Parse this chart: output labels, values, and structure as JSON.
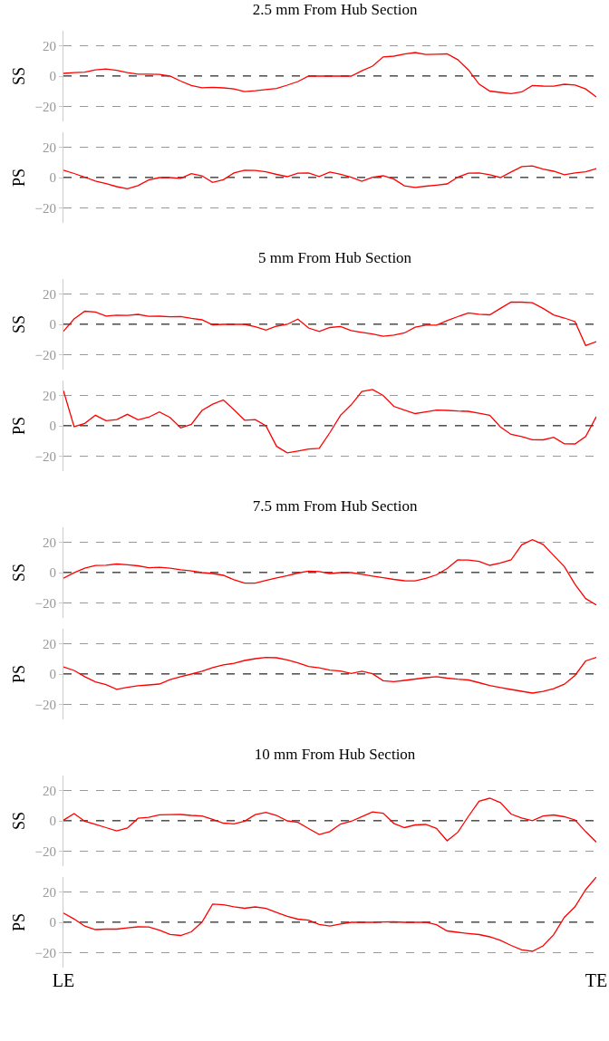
{
  "chart_data": [
    {
      "type": "line",
      "title": "2.5 mm From Hub Section",
      "ylabel": "SS",
      "categories": [
        null,
        null,
        null,
        null,
        null,
        null,
        null,
        null,
        null,
        null,
        null,
        null,
        null,
        null,
        null,
        null,
        null,
        null,
        null,
        null,
        null,
        null,
        null,
        null,
        null,
        null,
        null,
        null,
        null,
        null,
        null,
        null,
        null,
        null,
        null,
        null,
        null,
        null,
        null,
        null,
        null,
        null,
        null,
        null,
        null,
        null,
        null,
        null,
        null,
        null,
        null
      ],
      "ylim": [
        -30,
        30
      ],
      "yticks": [
        -20,
        0,
        20
      ],
      "grid": "y",
      "tick_labels": "y",
      "marker": "none",
      "line_style": "solid",
      "ref_lines": [
        {
          "axis": "y",
          "value": 0,
          "color": "#0000ff",
          "line_style": "dashed"
        }
      ],
      "series": [
        {
          "color": "#ff0000",
          "values": [
            1.8,
            2.3,
            2.6,
            4.1,
            4.7,
            3.8,
            2.3,
            1.3,
            1.3,
            1.1,
            0,
            -3.3,
            -6.2,
            -7.7,
            -7.4,
            -7.8,
            -8.5,
            -10.3,
            -9.7,
            -8.9,
            -8.2,
            -6,
            -3.6,
            0,
            0,
            0,
            0,
            0,
            3.5,
            6.6,
            12.7,
            13.2,
            14.6,
            15.6,
            14.3,
            14.5,
            14.7,
            10.9,
            4.1,
            -5.3,
            -9.9,
            -10.8,
            -11.6,
            -10.5,
            -6.2,
            -6.6,
            -6.7,
            -5.4,
            -5.9,
            -8.5,
            -13.8
          ]
        }
      ]
    },
    {
      "type": "line",
      "ylabel": "PS",
      "categories": [
        null,
        null,
        null,
        null,
        null,
        null,
        null,
        null,
        null,
        null,
        null,
        null,
        null,
        null,
        null,
        null,
        null,
        null,
        null,
        null,
        null,
        null,
        null,
        null,
        null,
        null,
        null,
        null,
        null,
        null,
        null,
        null,
        null,
        null,
        null,
        null,
        null,
        null,
        null,
        null,
        null,
        null,
        null,
        null,
        null,
        null,
        null,
        null,
        null,
        null,
        null
      ],
      "ylim": [
        -30,
        30
      ],
      "yticks": [
        -20,
        0,
        20
      ],
      "grid": "y",
      "tick_labels": "y",
      "marker": "none",
      "line_style": "solid",
      "ref_lines": [
        {
          "axis": "y",
          "value": 0,
          "color": "#0000ff",
          "line_style": "dashed"
        }
      ],
      "series": [
        {
          "color": "#ff0000",
          "values": [
            4.9,
            2.7,
            0.3,
            -2.3,
            -4,
            -6,
            -7.4,
            -5.3,
            -1.6,
            0,
            0,
            -0.5,
            2.6,
            1.2,
            -3.2,
            -1.4,
            3.1,
            4.9,
            4.7,
            3.8,
            2.1,
            0.6,
            2.9,
            3,
            0.7,
            3.7,
            2.2,
            0.2,
            -2.4,
            0.2,
            1.2,
            -1,
            -5.5,
            -6.5,
            -5.7,
            -5,
            -4.2,
            0.3,
            2.9,
            3.1,
            1.9,
            0,
            3.7,
            7.3,
            7.7,
            5.6,
            4.2,
            1.9,
            3.1,
            3.8,
            6
          ]
        }
      ]
    },
    {
      "type": "line",
      "title": "5 mm From Hub Section",
      "ylabel": "SS",
      "categories": [
        null,
        null,
        null,
        null,
        null,
        null,
        null,
        null,
        null,
        null,
        null,
        null,
        null,
        null,
        null,
        null,
        null,
        null,
        null,
        null,
        null,
        null,
        null,
        null,
        null,
        null,
        null,
        null,
        null,
        null,
        null,
        null,
        null,
        null,
        null,
        null,
        null,
        null,
        null,
        null,
        null,
        null,
        null,
        null,
        null,
        null,
        null,
        null,
        null,
        null,
        null
      ],
      "ylim": [
        -30,
        30
      ],
      "yticks": [
        -20,
        0,
        20
      ],
      "grid": "y",
      "tick_labels": "y",
      "marker": "none",
      "line_style": "solid",
      "ref_lines": [
        {
          "axis": "y",
          "value": 0,
          "color": "#0000ff",
          "line_style": "dashed"
        }
      ],
      "series": [
        {
          "color": "#ff0000",
          "values": [
            -4.6,
            3.6,
            8.7,
            8.2,
            5.5,
            6.1,
            5.9,
            6.6,
            5.3,
            5.4,
            5,
            5.2,
            4,
            3,
            -0.3,
            0,
            0,
            0,
            -1.6,
            -3.8,
            -1.2,
            0,
            3.5,
            -2.4,
            -4.7,
            -2.1,
            -1.4,
            -4.1,
            -5.3,
            -6.4,
            -7.9,
            -7.1,
            -5.7,
            -1.9,
            -0.5,
            -0.5,
            2.5,
            5.1,
            7.6,
            6.7,
            6.3,
            10.6,
            14.7,
            14.7,
            14.3,
            10.6,
            6.2,
            4.2,
            1.8,
            -14,
            -11.5
          ]
        }
      ]
    },
    {
      "type": "line",
      "ylabel": "PS",
      "categories": [
        null,
        null,
        null,
        null,
        null,
        null,
        null,
        null,
        null,
        null,
        null,
        null,
        null,
        null,
        null,
        null,
        null,
        null,
        null,
        null,
        null,
        null,
        null,
        null,
        null,
        null,
        null,
        null,
        null,
        null,
        null,
        null,
        null,
        null,
        null,
        null,
        null,
        null,
        null,
        null,
        null,
        null,
        null,
        null,
        null,
        null,
        null,
        null,
        null,
        null,
        null
      ],
      "ylim": [
        -30,
        30
      ],
      "yticks": [
        -20,
        0,
        20
      ],
      "grid": "y",
      "tick_labels": "y",
      "marker": "none",
      "line_style": "solid",
      "ref_lines": [
        {
          "axis": "y",
          "value": 0,
          "color": "#0000ff",
          "line_style": "dashed"
        }
      ],
      "series": [
        {
          "color": "#ff0000",
          "values": [
            23.3,
            -0.5,
            1.6,
            7,
            3.4,
            4.1,
            7.6,
            4,
            5.7,
            9.2,
            5.6,
            -1.4,
            1,
            10.2,
            14.3,
            17.1,
            10.7,
            3.7,
            4.1,
            0,
            -13.6,
            -17.9,
            -16.7,
            -15.4,
            -14.9,
            -4.5,
            7,
            13.9,
            22.7,
            24.1,
            20.1,
            12.9,
            10.4,
            8.1,
            9.2,
            10.4,
            10.2,
            9.8,
            9.6,
            8.3,
            7,
            -0.7,
            -5.7,
            -7.1,
            -9.2,
            -9.3,
            -7.6,
            -11.9,
            -12,
            -7.1,
            6.1
          ]
        }
      ]
    },
    {
      "type": "line",
      "title": "7.5 mm From Hub Section",
      "ylabel": "SS",
      "categories": [
        null,
        null,
        null,
        null,
        null,
        null,
        null,
        null,
        null,
        null,
        null,
        null,
        null,
        null,
        null,
        null,
        null,
        null,
        null,
        null,
        null,
        null,
        null,
        null,
        null,
        null,
        null,
        null,
        null,
        null,
        null,
        null,
        null,
        null,
        null,
        null,
        null,
        null,
        null,
        null,
        null,
        null,
        null,
        null,
        null,
        null,
        null,
        null,
        null,
        null,
        null
      ],
      "ylim": [
        -30,
        30
      ],
      "yticks": [
        -20,
        0,
        20
      ],
      "grid": "y",
      "tick_labels": "y",
      "marker": "none",
      "line_style": "solid",
      "ref_lines": [
        {
          "axis": "y",
          "value": 0,
          "color": "#0000ff",
          "line_style": "dashed"
        }
      ],
      "series": [
        {
          "color": "#ff0000",
          "values": [
            -3.7,
            -0.1,
            2.9,
            4.7,
            4.9,
            5.7,
            5.2,
            4.5,
            3.2,
            3.5,
            2.9,
            1.9,
            1.1,
            0,
            -0.6,
            -1.8,
            -4.7,
            -7,
            -7,
            -5.2,
            -3.5,
            -2,
            -0.3,
            1,
            0.7,
            -0.6,
            0,
            0,
            -1.1,
            -2.3,
            -3.4,
            -4.5,
            -5.4,
            -5.5,
            -3.8,
            -1.5,
            2.7,
            8.4,
            8.3,
            7.4,
            4.8,
            6.4,
            8.4,
            18.4,
            21.8,
            18.7,
            11.3,
            4,
            -7.7,
            -17.2,
            -21.4
          ]
        }
      ]
    },
    {
      "type": "line",
      "ylabel": "PS",
      "categories": [
        null,
        null,
        null,
        null,
        null,
        null,
        null,
        null,
        null,
        null,
        null,
        null,
        null,
        null,
        null,
        null,
        null,
        null,
        null,
        null,
        null,
        null,
        null,
        null,
        null,
        null,
        null,
        null,
        null,
        null,
        null,
        null,
        null,
        null,
        null,
        null,
        null,
        null,
        null,
        null,
        null,
        null,
        null,
        null,
        null,
        null,
        null,
        null,
        null,
        null,
        null
      ],
      "ylim": [
        -30,
        30
      ],
      "yticks": [
        -20,
        0,
        20
      ],
      "grid": "y",
      "tick_labels": "y",
      "marker": "none",
      "line_style": "solid",
      "ref_lines": [
        {
          "axis": "y",
          "value": 0,
          "color": "#0000ff",
          "line_style": "dashed"
        }
      ],
      "series": [
        {
          "color": "#ff0000",
          "values": [
            4.8,
            2.4,
            -1.7,
            -5.2,
            -7,
            -10.1,
            -8.8,
            -7.7,
            -7.2,
            -6.6,
            -3.7,
            -1.7,
            0,
            1.9,
            4.3,
            6.1,
            7.1,
            9,
            10.2,
            11,
            10.8,
            9.4,
            7.4,
            5,
            4.1,
            2.6,
            2,
            0.4,
            1.9,
            0.2,
            -4.4,
            -5,
            -4.2,
            -3.3,
            -2.4,
            -1.7,
            -2.7,
            -3.4,
            -3.9,
            -5.7,
            -7.6,
            -8.9,
            -10.2,
            -11.4,
            -12.6,
            -11.5,
            -9.7,
            -6.7,
            -0.9,
            8.7,
            11.1
          ]
        }
      ]
    },
    {
      "type": "line",
      "title": "10 mm From Hub Section",
      "ylabel": "SS",
      "categories": [
        null,
        null,
        null,
        null,
        null,
        null,
        null,
        null,
        null,
        null,
        null,
        null,
        null,
        null,
        null,
        null,
        null,
        null,
        null,
        null,
        null,
        null,
        null,
        null,
        null,
        null,
        null,
        null,
        null,
        null,
        null,
        null,
        null,
        null,
        null,
        null,
        null,
        null,
        null,
        null,
        null,
        null,
        null,
        null,
        null,
        null,
        null,
        null,
        null,
        null,
        null
      ],
      "ylim": [
        -30,
        30
      ],
      "yticks": [
        -20,
        0,
        20
      ],
      "grid": "y",
      "tick_labels": "y",
      "marker": "none",
      "line_style": "solid",
      "ref_lines": [
        {
          "axis": "y",
          "value": 0,
          "color": "#0000ff",
          "line_style": "dashed"
        }
      ],
      "series": [
        {
          "color": "#ff0000",
          "values": [
            0.4,
            4.8,
            -0.3,
            -2.3,
            -4.5,
            -6.7,
            -4.8,
            1.7,
            2.3,
            4,
            4.1,
            4.2,
            3.6,
            3.2,
            1,
            -1.5,
            -2,
            -0.2,
            4.1,
            5.6,
            3.6,
            0,
            -1,
            -5.1,
            -9.1,
            -7.1,
            -2.1,
            -0.3,
            2.8,
            5.9,
            5.1,
            -1.7,
            -4.5,
            -2.7,
            -2.4,
            -5,
            -13.2,
            -7.6,
            3,
            13,
            15,
            12.1,
            4.5,
            1.9,
            0.1,
            3.2,
            3.9,
            2.7,
            0.6,
            -7.1,
            -14.1
          ]
        }
      ]
    },
    {
      "type": "line",
      "ylabel": "PS",
      "categories": [
        "LE",
        null,
        null,
        null,
        null,
        null,
        null,
        null,
        null,
        null,
        null,
        null,
        null,
        null,
        null,
        null,
        null,
        null,
        null,
        null,
        null,
        null,
        null,
        null,
        null,
        null,
        null,
        null,
        null,
        null,
        null,
        null,
        null,
        null,
        null,
        null,
        null,
        null,
        null,
        null,
        null,
        null,
        null,
        null,
        null,
        null,
        null,
        null,
        null,
        null,
        "TE"
      ],
      "ylim": [
        -30,
        30
      ],
      "yticks": [
        -20,
        0,
        20
      ],
      "grid": "y",
      "marker": "none",
      "line_style": "solid",
      "ref_lines": [
        {
          "axis": "y",
          "value": 0,
          "color": "#0000ff",
          "line_style": "dashed"
        }
      ],
      "series": [
        {
          "color": "#ff0000",
          "values": [
            6.1,
            2.2,
            -2.5,
            -4.8,
            -4.5,
            -4.5,
            -3.7,
            -3,
            -3.1,
            -5.2,
            -8,
            -8.7,
            -6.3,
            0.1,
            12.1,
            11.6,
            10.3,
            9.3,
            10.2,
            9.2,
            6.5,
            4,
            2.1,
            1.4,
            -1.4,
            -2.5,
            -1.1,
            0,
            0,
            0,
            0.2,
            0.3,
            0,
            0,
            0.1,
            -1.6,
            -5.7,
            -6.6,
            -7.4,
            -8.1,
            -9.6,
            -11.9,
            -15.3,
            -18.2,
            -19.2,
            -15.6,
            -8.2,
            3.3,
            10.3,
            21.6,
            30
          ]
        }
      ]
    }
  ]
}
